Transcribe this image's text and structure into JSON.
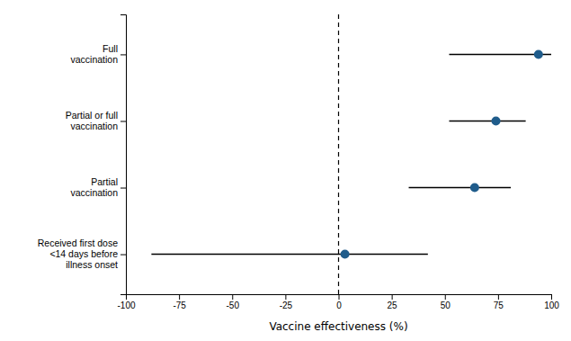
{
  "chart_data": {
    "type": "forest",
    "orientation": "horizontal",
    "categories": [
      "Full\nvaccination",
      "Partial or full\nvaccination",
      "Partial\nvaccination",
      "Received first dose\n<14 days before\nillness onset"
    ],
    "values": [
      94,
      74,
      64,
      3
    ],
    "ci_low": [
      52,
      52,
      33,
      -88
    ],
    "ci_high": [
      100,
      88,
      81,
      42
    ],
    "color": "#1f5c8b",
    "vline": 0,
    "xlabel": "Vaccine effectiveness (%)",
    "xlim": [
      -100,
      100
    ],
    "xticks": [
      -100,
      -75,
      -50,
      -25,
      0,
      25,
      50,
      75,
      100
    ],
    "grid": false
  }
}
